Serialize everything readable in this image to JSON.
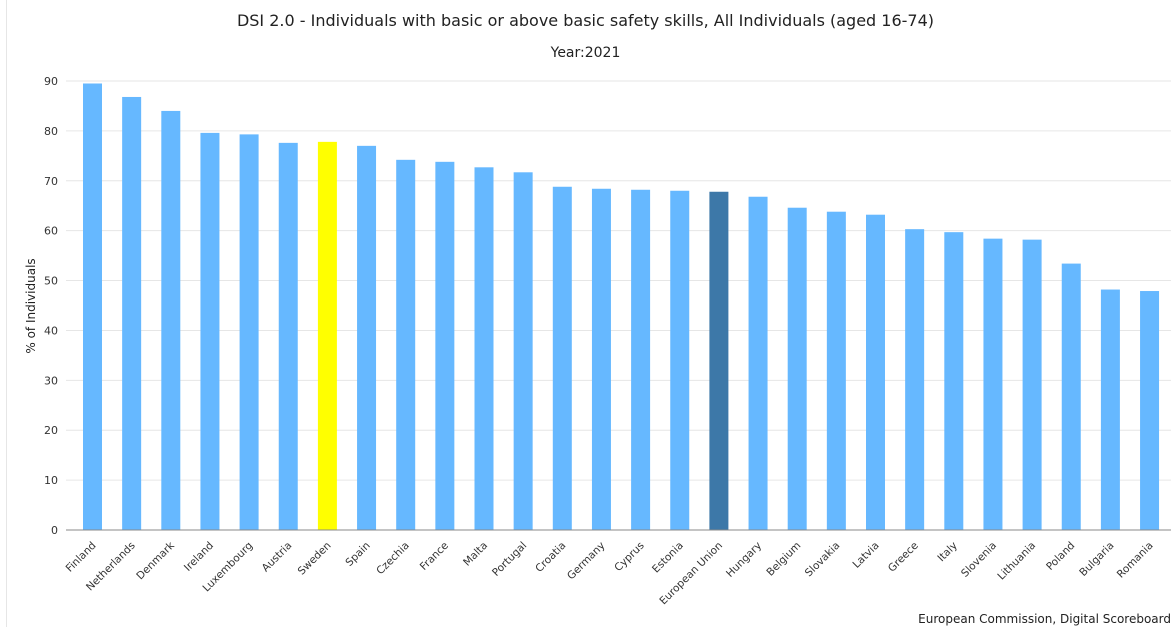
{
  "chart_data": {
    "type": "bar",
    "title": "DSI 2.0 - Individuals with basic or above basic safety skills, All Individuals (aged 16-74)",
    "subtitle": "Year:2021",
    "ylabel": "% of Individuals",
    "xlabel": "",
    "ylim": [
      0,
      90
    ],
    "yticks": [
      0,
      10,
      20,
      30,
      40,
      50,
      60,
      70,
      80,
      90
    ],
    "grid": true,
    "categories": [
      "Finland",
      "Netherlands",
      "Denmark",
      "Ireland",
      "Luxembourg",
      "Austria",
      "Sweden",
      "Spain",
      "Czechia",
      "France",
      "Malta",
      "Portugal",
      "Croatia",
      "Germany",
      "Cyprus",
      "Estonia",
      "European Union",
      "Hungary",
      "Belgium",
      "Slovakia",
      "Latvia",
      "Greece",
      "Italy",
      "Slovenia",
      "Lithuania",
      "Poland",
      "Bulgaria",
      "Romania"
    ],
    "values": [
      89.5,
      86.8,
      84.0,
      79.6,
      79.3,
      77.6,
      77.8,
      77.0,
      74.2,
      73.8,
      72.7,
      71.7,
      68.8,
      68.4,
      68.2,
      68.0,
      67.8,
      66.8,
      64.6,
      63.8,
      63.2,
      60.3,
      59.7,
      58.4,
      58.2,
      53.4,
      48.2,
      47.9
    ],
    "colors": {
      "default": "#66b8ff",
      "highlight_Sweden": "#ffff00",
      "highlight_European Union": "#3d78a8"
    }
  },
  "credits": "European Commission, Digital Scoreboard"
}
